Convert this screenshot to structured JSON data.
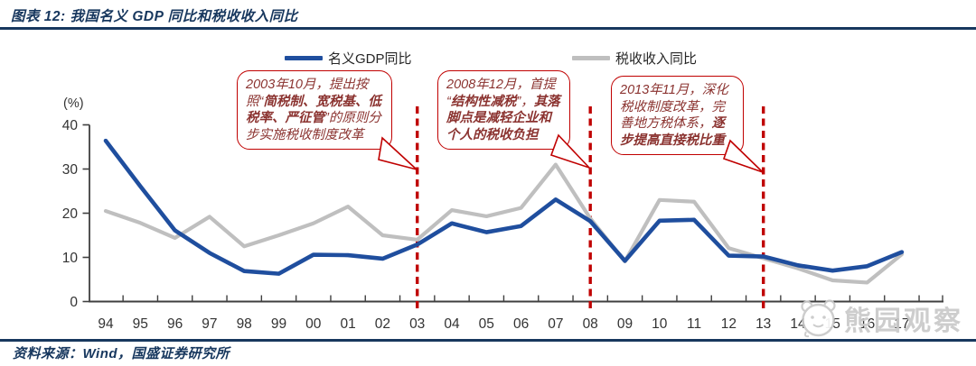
{
  "header": {
    "title": "图表 12: 我国名义 GDP 同比和税收收入同比"
  },
  "legend": {
    "items": [
      {
        "label": "名义GDP同比",
        "color": "#1F4E9E"
      },
      {
        "label": "税收收入同比",
        "color": "#BFBFBF"
      }
    ]
  },
  "chart_data": {
    "type": "line",
    "title": "我国名义GDP同比和税收收入同比",
    "unit_label": "(%)",
    "x_labels": [
      "94",
      "95",
      "96",
      "97",
      "98",
      "99",
      "00",
      "01",
      "02",
      "03",
      "04",
      "05",
      "06",
      "07",
      "08",
      "09",
      "10",
      "11",
      "12",
      "13",
      "14",
      "15",
      "16",
      "17"
    ],
    "ylim": [
      0,
      40
    ],
    "yticks": [
      0,
      10,
      20,
      30,
      40
    ],
    "grid": "off",
    "legend_position": "top",
    "series": [
      {
        "name": "名义GDP同比",
        "color": "#1F4E9E",
        "values": [
          36.4,
          26.1,
          16.1,
          11.0,
          6.9,
          6.3,
          10.6,
          10.5,
          9.7,
          12.9,
          17.7,
          15.7,
          17.1,
          23.1,
          18.2,
          9.2,
          18.3,
          18.5,
          10.4,
          10.2,
          8.2,
          7.0,
          8.0,
          11.2
        ]
      },
      {
        "name": "税收收入同比",
        "color": "#BFBFBF",
        "values": [
          20.5,
          17.8,
          14.4,
          19.2,
          12.5,
          15.0,
          17.7,
          21.5,
          15.0,
          14.0,
          20.7,
          19.3,
          21.2,
          31.0,
          18.8,
          9.1,
          23.0,
          22.6,
          12.1,
          9.8,
          7.5,
          4.8,
          4.3,
          10.7
        ]
      }
    ],
    "event_lines": {
      "color": "#C00000",
      "years": [
        "03",
        "08",
        "13"
      ]
    }
  },
  "annotations": [
    {
      "anchor_year": "03",
      "segments": [
        {
          "text": "2003年10月，提出按照“",
          "bold": false
        },
        {
          "text": "简税制、宽税基、低税率、严征管",
          "bold": true
        },
        {
          "text": "”的原则分步实施税收制度改革",
          "bold": false
        }
      ]
    },
    {
      "anchor_year": "08",
      "segments": [
        {
          "text": "2008年12月，首提 “",
          "bold": false
        },
        {
          "text": "结构性减税",
          "bold": true
        },
        {
          "text": "”，",
          "bold": false
        },
        {
          "text": "其落脚点是减轻企业和个人的税收负担",
          "bold": true
        }
      ]
    },
    {
      "anchor_year": "13",
      "segments": [
        {
          "text": "2013年11月，深化税收制度改革，完善地方税体系，",
          "bold": false
        },
        {
          "text": "逐步提高直接税比重",
          "bold": true
        }
      ]
    }
  ],
  "watermark": {
    "text": "熊园观察"
  },
  "footer": {
    "source": "资料来源：Wind，国盛证券研究所"
  },
  "colors": {
    "navy": "#17375E",
    "gdp_blue": "#1F4E9E",
    "tax_gray": "#BFBFBF",
    "event_red": "#C00000",
    "annotation_text": "#8B3330",
    "axis_text": "#333333"
  }
}
